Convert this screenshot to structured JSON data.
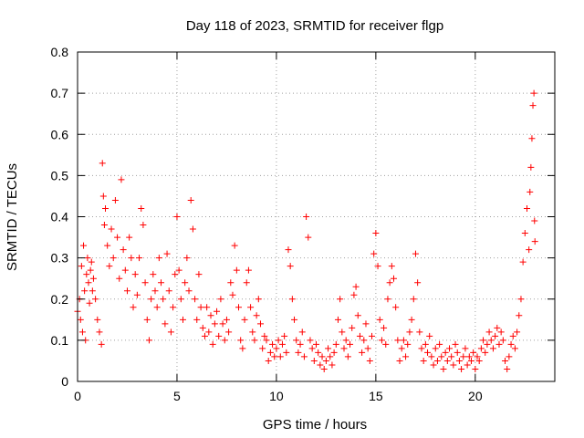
{
  "chart_data": {
    "type": "scatter",
    "title": "Day 118 of 2023, SRMTID for receiver flgp",
    "xlabel": "GPS time / hours",
    "ylabel": "SRMTID / TECUs",
    "xlim": [
      0,
      24
    ],
    "ylim": [
      0,
      0.8
    ],
    "grid": true,
    "marker": "+",
    "color": "#ff0000",
    "xticks": [
      0,
      5,
      10,
      15,
      20
    ],
    "xtick_labels": [
      "0",
      "5",
      "10",
      "15",
      "20"
    ],
    "yticks": [
      0,
      0.1,
      0.2,
      0.3,
      0.4,
      0.5,
      0.6,
      0.7,
      0.8
    ],
    "ytick_labels": [
      "0",
      "0.1",
      "0.2",
      "0.3",
      "0.4",
      "0.5",
      "0.6",
      "0.7",
      "0.8"
    ],
    "series": [
      {
        "name": "SRMTID",
        "points": [
          [
            0.0,
            0.17
          ],
          [
            0.1,
            0.2
          ],
          [
            0.15,
            0.15
          ],
          [
            0.2,
            0.28
          ],
          [
            0.25,
            0.12
          ],
          [
            0.3,
            0.33
          ],
          [
            0.35,
            0.22
          ],
          [
            0.4,
            0.1
          ],
          [
            0.45,
            0.26
          ],
          [
            0.5,
            0.3
          ],
          [
            0.55,
            0.24
          ],
          [
            0.6,
            0.19
          ],
          [
            0.65,
            0.27
          ],
          [
            0.7,
            0.29
          ],
          [
            0.75,
            0.22
          ],
          [
            0.8,
            0.25
          ],
          [
            0.9,
            0.2
          ],
          [
            1.0,
            0.15
          ],
          [
            1.1,
            0.12
          ],
          [
            1.2,
            0.09
          ],
          [
            1.25,
            0.53
          ],
          [
            1.3,
            0.45
          ],
          [
            1.35,
            0.38
          ],
          [
            1.4,
            0.42
          ],
          [
            1.5,
            0.33
          ],
          [
            1.6,
            0.28
          ],
          [
            1.7,
            0.37
          ],
          [
            1.8,
            0.3
          ],
          [
            1.9,
            0.44
          ],
          [
            2.0,
            0.35
          ],
          [
            2.1,
            0.25
          ],
          [
            2.2,
            0.49
          ],
          [
            2.3,
            0.32
          ],
          [
            2.4,
            0.27
          ],
          [
            2.5,
            0.22
          ],
          [
            2.6,
            0.35
          ],
          [
            2.7,
            0.3
          ],
          [
            2.8,
            0.18
          ],
          [
            2.9,
            0.26
          ],
          [
            3.0,
            0.21
          ],
          [
            3.1,
            0.3
          ],
          [
            3.2,
            0.42
          ],
          [
            3.3,
            0.38
          ],
          [
            3.4,
            0.24
          ],
          [
            3.5,
            0.15
          ],
          [
            3.6,
            0.1
          ],
          [
            3.7,
            0.2
          ],
          [
            3.8,
            0.26
          ],
          [
            3.9,
            0.22
          ],
          [
            4.0,
            0.18
          ],
          [
            4.1,
            0.3
          ],
          [
            4.2,
            0.24
          ],
          [
            4.3,
            0.2
          ],
          [
            4.4,
            0.14
          ],
          [
            4.5,
            0.31
          ],
          [
            4.6,
            0.22
          ],
          [
            4.7,
            0.12
          ],
          [
            4.8,
            0.18
          ],
          [
            4.9,
            0.26
          ],
          [
            5.0,
            0.4
          ],
          [
            5.1,
            0.27
          ],
          [
            5.2,
            0.2
          ],
          [
            5.3,
            0.15
          ],
          [
            5.4,
            0.24
          ],
          [
            5.5,
            0.3
          ],
          [
            5.6,
            0.22
          ],
          [
            5.7,
            0.44
          ],
          [
            5.8,
            0.37
          ],
          [
            5.9,
            0.2
          ],
          [
            6.0,
            0.15
          ],
          [
            6.1,
            0.26
          ],
          [
            6.2,
            0.18
          ],
          [
            6.3,
            0.13
          ],
          [
            6.4,
            0.11
          ],
          [
            6.5,
            0.18
          ],
          [
            6.6,
            0.12
          ],
          [
            6.7,
            0.16
          ],
          [
            6.8,
            0.09
          ],
          [
            6.9,
            0.14
          ],
          [
            7.0,
            0.17
          ],
          [
            7.1,
            0.11
          ],
          [
            7.2,
            0.2
          ],
          [
            7.3,
            0.14
          ],
          [
            7.4,
            0.1
          ],
          [
            7.5,
            0.15
          ],
          [
            7.6,
            0.12
          ],
          [
            7.7,
            0.24
          ],
          [
            7.8,
            0.21
          ],
          [
            7.9,
            0.33
          ],
          [
            8.0,
            0.27
          ],
          [
            8.1,
            0.18
          ],
          [
            8.2,
            0.1
          ],
          [
            8.3,
            0.08
          ],
          [
            8.4,
            0.15
          ],
          [
            8.5,
            0.24
          ],
          [
            8.6,
            0.27
          ],
          [
            8.7,
            0.18
          ],
          [
            8.8,
            0.12
          ],
          [
            8.9,
            0.1
          ],
          [
            9.0,
            0.16
          ],
          [
            9.1,
            0.2
          ],
          [
            9.2,
            0.14
          ],
          [
            9.3,
            0.08
          ],
          [
            9.4,
            0.11
          ],
          [
            9.5,
            0.1
          ],
          [
            9.6,
            0.05
          ],
          [
            9.7,
            0.07
          ],
          [
            9.8,
            0.09
          ],
          [
            9.9,
            0.06
          ],
          [
            10.0,
            0.08
          ],
          [
            10.1,
            0.1
          ],
          [
            10.2,
            0.06
          ],
          [
            10.3,
            0.09
          ],
          [
            10.4,
            0.11
          ],
          [
            10.5,
            0.07
          ],
          [
            10.6,
            0.32
          ],
          [
            10.7,
            0.28
          ],
          [
            10.8,
            0.2
          ],
          [
            10.9,
            0.15
          ],
          [
            11.0,
            0.1
          ],
          [
            11.1,
            0.07
          ],
          [
            11.2,
            0.09
          ],
          [
            11.3,
            0.12
          ],
          [
            11.4,
            0.06
          ],
          [
            11.5,
            0.4
          ],
          [
            11.6,
            0.35
          ],
          [
            11.7,
            0.1
          ],
          [
            11.8,
            0.08
          ],
          [
            11.9,
            0.05
          ],
          [
            12.0,
            0.09
          ],
          [
            12.1,
            0.07
          ],
          [
            12.2,
            0.04
          ],
          [
            12.3,
            0.06
          ],
          [
            12.4,
            0.03
          ],
          [
            12.5,
            0.05
          ],
          [
            12.6,
            0.08
          ],
          [
            12.7,
            0.06
          ],
          [
            12.8,
            0.04
          ],
          [
            12.9,
            0.07
          ],
          [
            13.0,
            0.09
          ],
          [
            13.1,
            0.15
          ],
          [
            13.2,
            0.2
          ],
          [
            13.3,
            0.12
          ],
          [
            13.4,
            0.08
          ],
          [
            13.5,
            0.1
          ],
          [
            13.6,
            0.06
          ],
          [
            13.7,
            0.09
          ],
          [
            13.8,
            0.13
          ],
          [
            13.9,
            0.21
          ],
          [
            14.0,
            0.23
          ],
          [
            14.1,
            0.16
          ],
          [
            14.2,
            0.11
          ],
          [
            14.3,
            0.07
          ],
          [
            14.4,
            0.1
          ],
          [
            14.5,
            0.14
          ],
          [
            14.6,
            0.08
          ],
          [
            14.7,
            0.05
          ],
          [
            14.8,
            0.11
          ],
          [
            14.9,
            0.31
          ],
          [
            15.0,
            0.36
          ],
          [
            15.1,
            0.28
          ],
          [
            15.2,
            0.15
          ],
          [
            15.3,
            0.1
          ],
          [
            15.4,
            0.13
          ],
          [
            15.5,
            0.09
          ],
          [
            15.6,
            0.2
          ],
          [
            15.7,
            0.24
          ],
          [
            15.8,
            0.28
          ],
          [
            15.9,
            0.25
          ],
          [
            16.0,
            0.18
          ],
          [
            16.1,
            0.1
          ],
          [
            16.2,
            0.05
          ],
          [
            16.3,
            0.08
          ],
          [
            16.4,
            0.1
          ],
          [
            16.5,
            0.06
          ],
          [
            16.6,
            0.09
          ],
          [
            16.7,
            0.12
          ],
          [
            16.8,
            0.15
          ],
          [
            16.9,
            0.2
          ],
          [
            17.0,
            0.31
          ],
          [
            17.1,
            0.24
          ],
          [
            17.2,
            0.12
          ],
          [
            17.3,
            0.08
          ],
          [
            17.4,
            0.05
          ],
          [
            17.5,
            0.09
          ],
          [
            17.6,
            0.07
          ],
          [
            17.7,
            0.11
          ],
          [
            17.8,
            0.06
          ],
          [
            17.9,
            0.04
          ],
          [
            18.0,
            0.08
          ],
          [
            18.1,
            0.05
          ],
          [
            18.2,
            0.09
          ],
          [
            18.3,
            0.06
          ],
          [
            18.4,
            0.03
          ],
          [
            18.5,
            0.07
          ],
          [
            18.6,
            0.05
          ],
          [
            18.7,
            0.08
          ],
          [
            18.8,
            0.06
          ],
          [
            18.9,
            0.04
          ],
          [
            19.0,
            0.09
          ],
          [
            19.1,
            0.07
          ],
          [
            19.2,
            0.05
          ],
          [
            19.3,
            0.03
          ],
          [
            19.4,
            0.06
          ],
          [
            19.5,
            0.08
          ],
          [
            19.6,
            0.04
          ],
          [
            19.7,
            0.06
          ],
          [
            19.8,
            0.05
          ],
          [
            19.9,
            0.07
          ],
          [
            20.0,
            0.03
          ],
          [
            20.1,
            0.06
          ],
          [
            20.2,
            0.05
          ],
          [
            20.3,
            0.08
          ],
          [
            20.4,
            0.1
          ],
          [
            20.5,
            0.07
          ],
          [
            20.6,
            0.09
          ],
          [
            20.7,
            0.12
          ],
          [
            20.8,
            0.1
          ],
          [
            20.9,
            0.08
          ],
          [
            21.0,
            0.11
          ],
          [
            21.1,
            0.13
          ],
          [
            21.2,
            0.09
          ],
          [
            21.3,
            0.12
          ],
          [
            21.4,
            0.1
          ],
          [
            21.5,
            0.05
          ],
          [
            21.6,
            0.03
          ],
          [
            21.7,
            0.06
          ],
          [
            21.8,
            0.09
          ],
          [
            21.9,
            0.11
          ],
          [
            22.0,
            0.08
          ],
          [
            22.1,
            0.12
          ],
          [
            22.2,
            0.16
          ],
          [
            22.3,
            0.2
          ],
          [
            22.4,
            0.29
          ],
          [
            22.5,
            0.36
          ],
          [
            22.6,
            0.42
          ],
          [
            22.7,
            0.32
          ],
          [
            22.75,
            0.46
          ],
          [
            22.8,
            0.52
          ],
          [
            22.85,
            0.59
          ],
          [
            22.9,
            0.67
          ],
          [
            22.95,
            0.7
          ],
          [
            22.98,
            0.39
          ],
          [
            23.0,
            0.34
          ]
        ]
      }
    ]
  }
}
